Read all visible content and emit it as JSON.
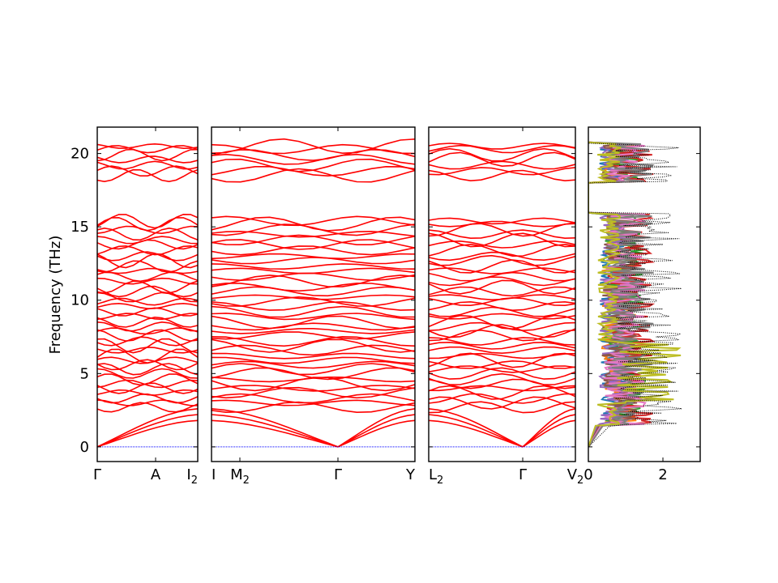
{
  "chart_data": [
    {
      "type": "line",
      "panel": "band-path-1",
      "ylabel": "Frequency (THz)",
      "ylim": [
        -1,
        21.8
      ],
      "yticks": [
        0,
        5,
        10,
        15,
        20
      ],
      "band_color": "#ff0000",
      "zero_line_color": "#0000ff",
      "x_tick_labels": [
        {
          "base": "Γ",
          "sub": ""
        },
        {
          "base": "A",
          "sub": ""
        },
        {
          "base": "I",
          "sub": "2"
        }
      ],
      "segment_ends": [
        {
          "sub_count": 0
        }
      ],
      "bands": {
        "acoustic_top": [
          2.6,
          2.2,
          1.8
        ],
        "optical_levels": [
          2.7,
          3.0,
          3.3,
          3.7,
          4.0,
          4.3,
          4.6,
          5.0,
          5.3,
          5.6,
          5.9,
          6.2,
          6.6,
          6.9,
          7.2,
          7.6,
          7.9,
          8.2,
          8.5,
          8.9,
          9.2,
          9.6,
          9.9,
          10.2,
          10.6,
          10.9,
          11.3,
          11.6,
          12.0,
          12.3,
          12.7,
          13.0,
          13.4,
          13.8,
          14.1,
          14.5,
          14.8,
          15.2,
          15.4,
          18.5,
          18.8,
          19.2,
          19.6,
          19.9,
          20.3,
          20.5
        ]
      }
    },
    {
      "type": "line",
      "panel": "band-path-2",
      "x_tick_labels": [
        {
          "base": "I",
          "sub": ""
        },
        {
          "base": "M",
          "sub": "2"
        },
        {
          "base": "Γ",
          "sub": ""
        },
        {
          "base": "Y",
          "sub": ""
        }
      ]
    },
    {
      "type": "line",
      "panel": "band-path-3",
      "x_tick_labels": [
        {
          "base": "L",
          "sub": "2"
        },
        {
          "base": "Γ",
          "sub": ""
        },
        {
          "base": "V",
          "sub": "2"
        }
      ]
    },
    {
      "type": "line",
      "panel": "density-of-states",
      "x_tick_labels": [
        "0",
        "2"
      ],
      "xlim": [
        0,
        3
      ],
      "total_dos_style": "dotted black",
      "projected_colors": [
        "#1f77b4",
        "#ff7f0e",
        "#2ca02c",
        "#d62728",
        "#9467bd",
        "#8c564b",
        "#e377c2",
        "#7f7f7f",
        "#bcbd22"
      ]
    }
  ]
}
